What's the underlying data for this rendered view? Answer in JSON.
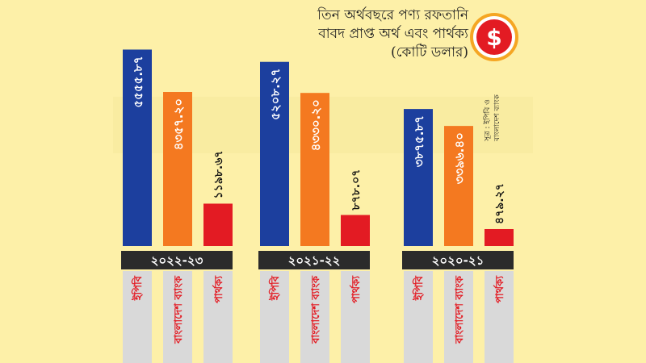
{
  "chart_data": {
    "type": "bar",
    "title": [
      "তিন অর্থবছরে পণ্য রফতানি",
      "বাবদ প্রাপ্ত অর্থ এবং পার্থক্য",
      "(কোটি ডলার)"
    ],
    "categories": [
      "২০২২-২৩",
      "২০২১-২২",
      "২০২০-২১"
    ],
    "series": [
      {
        "name": "ইপিবি",
        "values": [
          5555.87,
          5208.27,
          3875.87
        ],
        "labels": [
          "৫৫৫৫.৮৭",
          "৫২০৮.২৭",
          "৩৮৭৫.৮৭"
        ],
        "color": "#1c3f9e"
      },
      {
        "name": "বাংলাদেশ ব্যাংক",
        "values": [
          4357.2,
          4330.2,
          3396.4
        ],
        "labels": [
          "৪৩৫৭.২০",
          "৪৩৩০.২০",
          "৩৩৯৬.৪০"
        ],
        "color": "#f47920"
      },
      {
        "name": "পার্থক্য",
        "values": [
          1198.67,
          878.07,
          479.27
        ],
        "labels": [
          "১১৯৮.৬৭",
          "৮৭৮.০৭",
          "৪৭৯.২৭"
        ],
        "color": "#e31b23"
      }
    ],
    "ylim": [
      0,
      6000
    ],
    "source": [
      "সূত্র : ইপিবি ও",
      "বাংলাদেশ ব্যাংক"
    ]
  },
  "colors": {
    "background": "#fdf0a8",
    "year_band": "#2b2b2b",
    "label_column": "#d9d9d9",
    "label_text": "#e31b23",
    "icon_circle": "#e31b23",
    "icon_ring": "#f5a623"
  },
  "icon": {
    "name": "dollar-coin-icon",
    "glyph": "$"
  }
}
